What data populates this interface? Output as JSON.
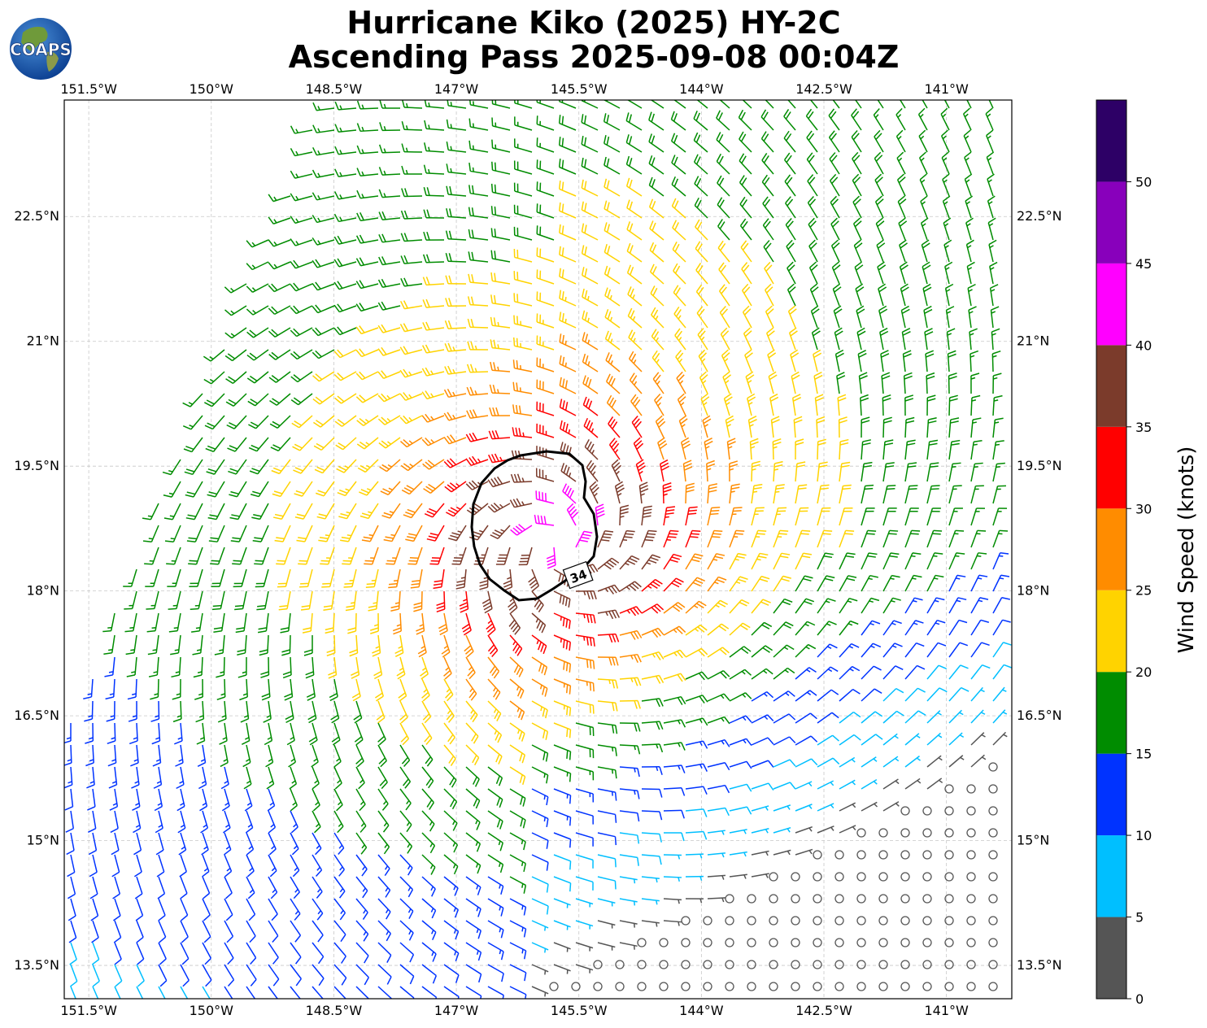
{
  "title_line1": "Hurricane Kiko (2025) HY-2C",
  "title_line2": "Ascending Pass 2025-09-08 00:04Z",
  "logo_text": "COAPS",
  "map": {
    "lon_range": [
      -151.8,
      -140.2
    ],
    "lat_range": [
      13.1,
      23.9
    ],
    "lon_ticks": [
      {
        "value": -151.5,
        "label": "151.5°W"
      },
      {
        "value": -150.0,
        "label": "150°W"
      },
      {
        "value": -148.5,
        "label": "148.5°W"
      },
      {
        "value": -147.0,
        "label": "147°W"
      },
      {
        "value": -145.5,
        "label": "145.5°W"
      },
      {
        "value": -144.0,
        "label": "144°W"
      },
      {
        "value": -142.5,
        "label": "142.5°W"
      },
      {
        "value": -141.0,
        "label": "141°W"
      }
    ],
    "lat_ticks": [
      {
        "value": 13.5,
        "label": "13.5°N"
      },
      {
        "value": 15.0,
        "label": "15°N"
      },
      {
        "value": 16.5,
        "label": "16.5°N"
      },
      {
        "value": 18.0,
        "label": "18°N"
      },
      {
        "value": 19.5,
        "label": "19.5°N"
      },
      {
        "value": 21.0,
        "label": "21°N"
      },
      {
        "value": 22.5,
        "label": "22.5°N"
      }
    ],
    "storm_center": {
      "lon": -145.75,
      "lat": 18.55
    },
    "contour_label": "34",
    "grid_lines": true
  },
  "colorbar": {
    "label": "Wind Speed (knots)",
    "bins": [
      {
        "min": 0,
        "max": 5,
        "color": "#555555"
      },
      {
        "min": 5,
        "max": 10,
        "color": "#00bfff"
      },
      {
        "min": 10,
        "max": 15,
        "color": "#0033ff"
      },
      {
        "min": 15,
        "max": 20,
        "color": "#008c00"
      },
      {
        "min": 20,
        "max": 25,
        "color": "#ffd300"
      },
      {
        "min": 25,
        "max": 30,
        "color": "#ff8c00"
      },
      {
        "min": 30,
        "max": 35,
        "color": "#ff0000"
      },
      {
        "min": 35,
        "max": 40,
        "color": "#7b3b2b"
      },
      {
        "min": 40,
        "max": 45,
        "color": "#ff00ff"
      },
      {
        "min": 45,
        "max": 50,
        "color": "#8800bb"
      },
      {
        "min": 50,
        "max": 55,
        "color": "#2d0066"
      }
    ],
    "ticks": [
      "0",
      "5",
      "10",
      "15",
      "20",
      "25",
      "30",
      "35",
      "40",
      "45",
      "50"
    ]
  }
}
